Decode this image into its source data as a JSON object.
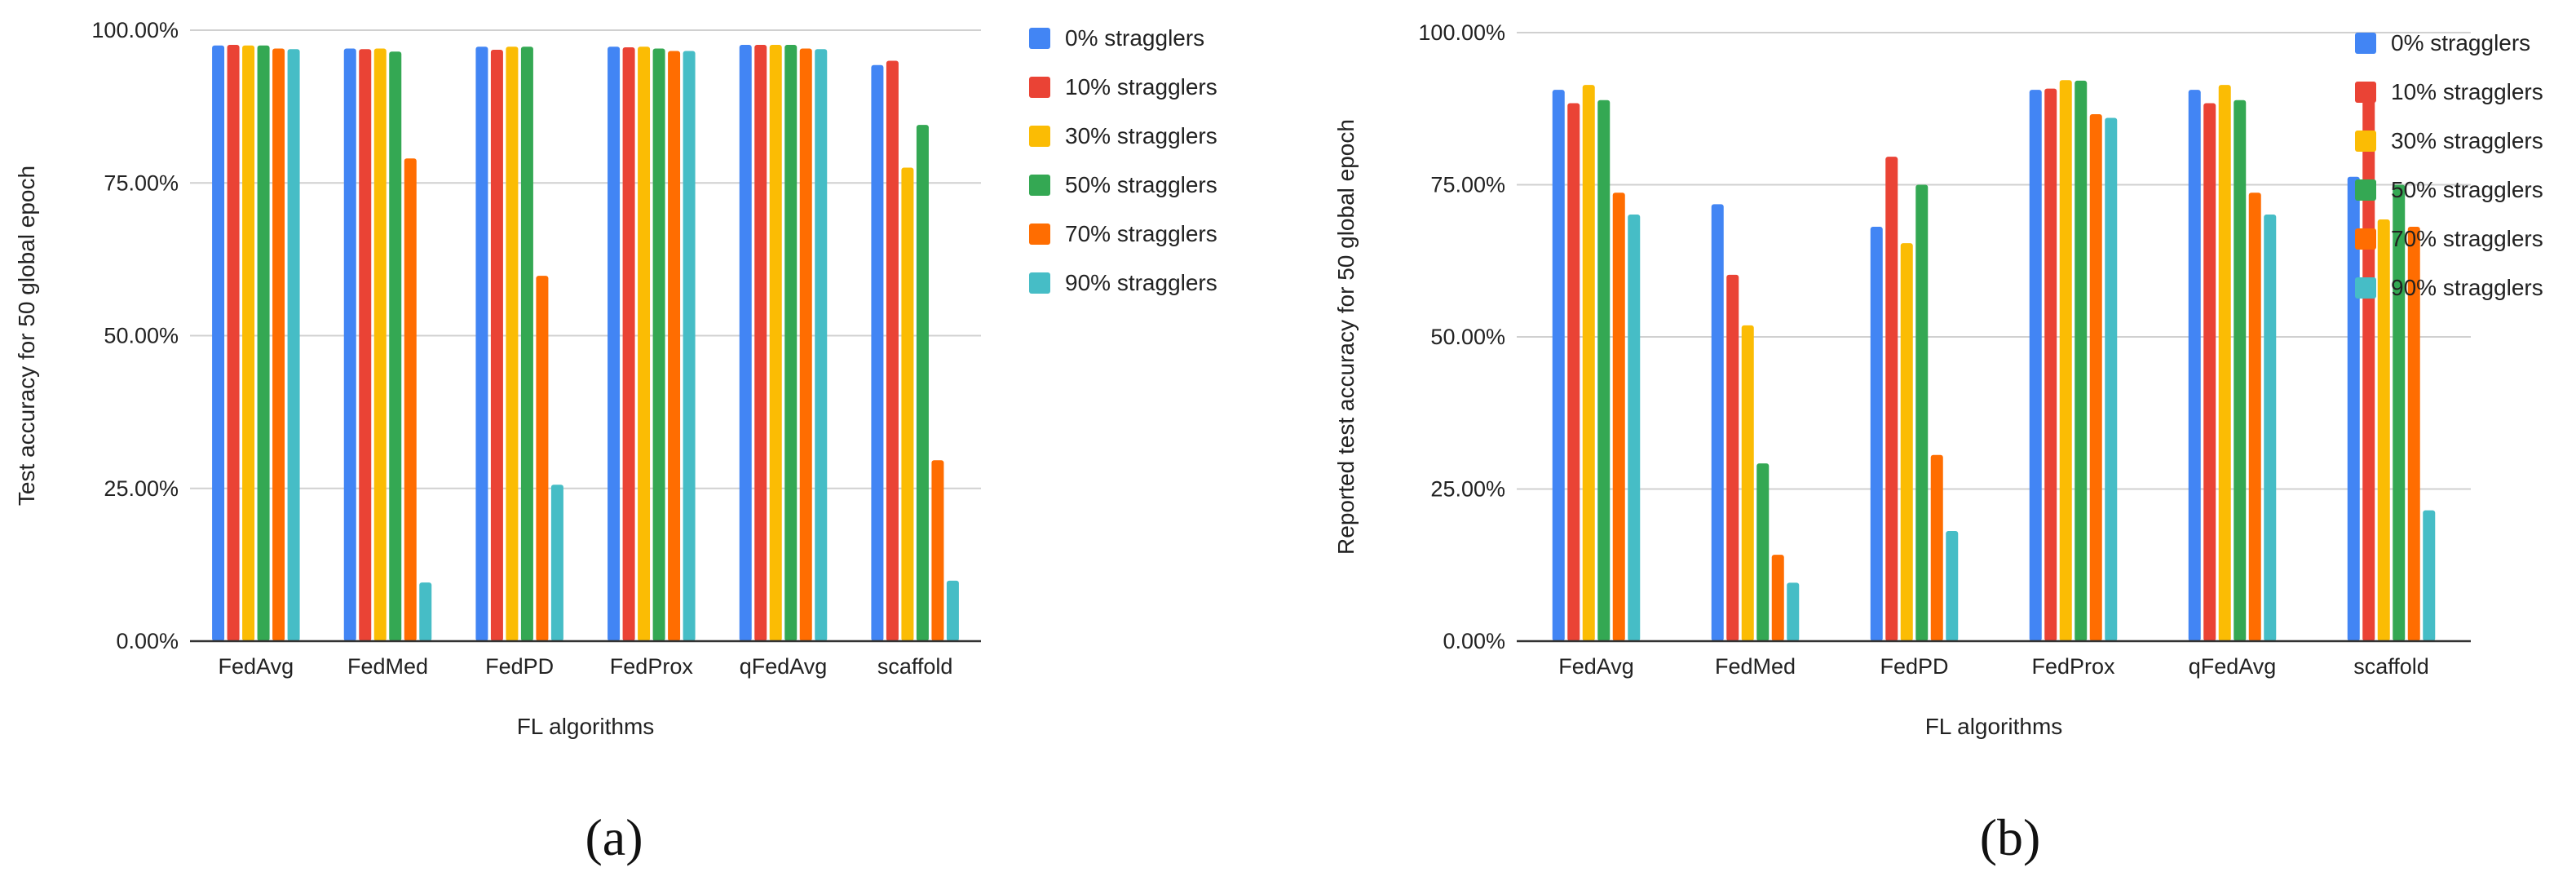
{
  "colors": {
    "series": [
      "#4285f4",
      "#ea4335",
      "#fbbc04",
      "#34a853",
      "#ff6d01",
      "#46bdc6"
    ],
    "grid": "#d0d0d0",
    "axis": "#333333"
  },
  "chart_data": [
    {
      "type": "bar",
      "panel_label": "(a)",
      "title": "",
      "xlabel": "FL algorithms",
      "ylabel": "Test accuracy for 50 global epoch",
      "ylim": [
        0,
        100
      ],
      "yticks": [
        "0.00%",
        "25.00%",
        "50.00%",
        "75.00%",
        "100.00%"
      ],
      "categories": [
        "FedAvg",
        "FedMed",
        "FedPD",
        "FedProx",
        "qFedAvg",
        "scaffold"
      ],
      "legend_position": "right",
      "series": [
        {
          "name": "0% stragglers",
          "values": [
            97.5,
            97.0,
            97.3,
            97.3,
            97.6,
            94.3
          ]
        },
        {
          "name": "10% stragglers",
          "values": [
            97.6,
            96.9,
            96.8,
            97.2,
            97.6,
            95.0
          ]
        },
        {
          "name": "30% stragglers",
          "values": [
            97.5,
            97.0,
            97.3,
            97.3,
            97.6,
            77.5
          ]
        },
        {
          "name": "50% stragglers",
          "values": [
            97.5,
            96.5,
            97.3,
            97.0,
            97.6,
            84.5
          ]
        },
        {
          "name": "70% stragglers",
          "values": [
            97.0,
            79.0,
            59.8,
            96.6,
            97.0,
            29.6
          ]
        },
        {
          "name": "90% stragglers",
          "values": [
            96.9,
            9.6,
            25.6,
            96.6,
            96.9,
            9.9
          ]
        }
      ]
    },
    {
      "type": "bar",
      "panel_label": "(b)",
      "title": "",
      "xlabel": "FL algorithms",
      "ylabel": "Reported test accuracy for 50 global epoch",
      "ylim": [
        0,
        100
      ],
      "yticks": [
        "0.00%",
        "25.00%",
        "50.00%",
        "75.00%",
        "100.00%"
      ],
      "categories": [
        "FedAvg",
        "FedMed",
        "FedPD",
        "FedProx",
        "qFedAvg",
        "scaffold"
      ],
      "legend_position": "right",
      "series": [
        {
          "name": "0% stragglers",
          "values": [
            90.6,
            71.8,
            68.1,
            90.6,
            90.6,
            76.3
          ]
        },
        {
          "name": "10% stragglers",
          "values": [
            88.4,
            60.2,
            79.6,
            90.8,
            88.4,
            91.3
          ]
        },
        {
          "name": "30% stragglers",
          "values": [
            91.4,
            51.9,
            65.4,
            92.2,
            91.4,
            69.3
          ]
        },
        {
          "name": "50% stragglers",
          "values": [
            88.9,
            29.2,
            75.0,
            92.1,
            88.9,
            75.0
          ]
        },
        {
          "name": "70% stragglers",
          "values": [
            73.7,
            14.2,
            30.6,
            86.6,
            73.7,
            68.1
          ]
        },
        {
          "name": "90% stragglers",
          "values": [
            70.1,
            9.6,
            18.1,
            86.0,
            70.1,
            21.5
          ]
        }
      ]
    }
  ]
}
